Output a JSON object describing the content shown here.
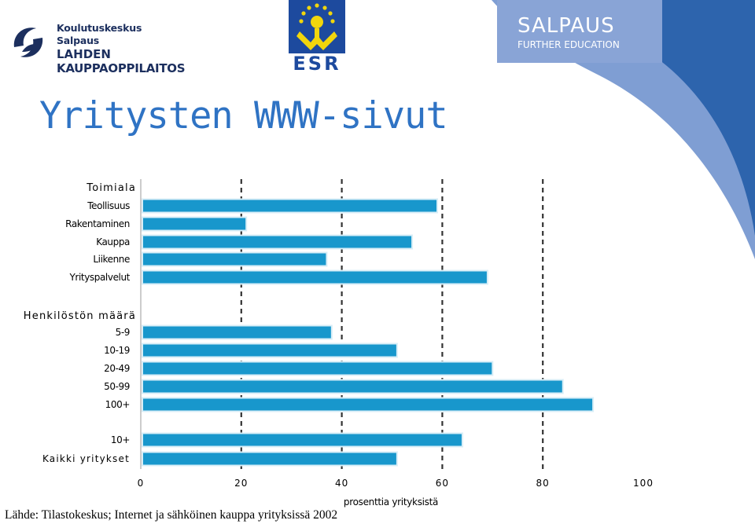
{
  "slide": {
    "title": "Yritysten WWW-sivut",
    "source": "Lähde: Tilastokeskus; Internet ja sähköinen kauppa yrityksissä 2002"
  },
  "logos": {
    "left": [
      "Koulutuskeskus Salpaus",
      "LAHDEN",
      "KAUPPAOPPILAITOS"
    ],
    "center": "ESR",
    "right": [
      "SALPAUS",
      "FURTHER EDUCATION"
    ]
  },
  "colors": {
    "bar_fill": "#1897cc",
    "bar_edge": "#d8eef7",
    "title": "#2f73c4",
    "corner_blue": "#2d64ad",
    "logo_navy": "#1c2f5e",
    "esr_blue": "#1d4a9e",
    "esr_yellow": "#f1d60c"
  },
  "chart_data": {
    "type": "bar",
    "orientation": "horizontal",
    "xlabel": "prosenttia yrityksistä",
    "xlim": [
      0,
      100
    ],
    "xticks": [
      0,
      20,
      40,
      60,
      80,
      100
    ],
    "gridlines": "dashed vertical at 20, 40, 60, 80",
    "groups": [
      {
        "header": "Toimiala",
        "categories": [
          "Teollisuus",
          "Rakentaminen",
          "Kauppa",
          "Liikenne",
          "Yrityspalvelut"
        ],
        "values": [
          59,
          21,
          54,
          37,
          69
        ]
      },
      {
        "header": "Henkilöstön määrä",
        "categories": [
          "5-9",
          "10-19",
          "20-49",
          "50-99",
          "100+"
        ],
        "values": [
          38,
          51,
          70,
          84,
          90
        ]
      },
      {
        "header": "",
        "categories": [
          "10+",
          "Kaikki yritykset"
        ],
        "values": [
          64,
          51
        ]
      }
    ]
  }
}
